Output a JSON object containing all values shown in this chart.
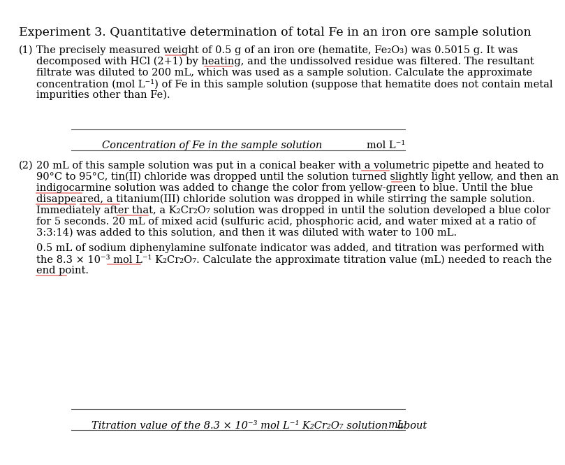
{
  "title": "Experiment 3. Quantitative determination of total Fe in an iron ore sample solution",
  "title_fontsize": 12.5,
  "body_fontsize": 10.5,
  "bg_color": "#ffffff",
  "text_color": "#000000",
  "underline_color": "#e88080",
  "answer_line1_text": "Concentration of Fe in the sample solution",
  "answer_line1_right": "mol L⁻¹",
  "answer_line2_text": "Titration value of the 8.3 × 10⁻³ mol L⁻¹ K₂Cr₂O₇ solution   about",
  "answer_line2_right": "mL",
  "s1_lines": [
    "The precisely measured weight of 0.5 g of an iron ore (hematite, Fe₂O₃) was 0.5015 g. It was",
    "decomposed with HCl (2+1) by heating, and the undissolved residue was filtered. The resultant",
    "filtrate was diluted to 200 mL, which was used as a sample solution. Calculate the approximate",
    "concentration (mol L⁻¹) of Fe in this sample solution (suppose that hematite does not contain metal",
    "impurities other than Fe)."
  ],
  "s2_lines_a": [
    "20 mL of this sample solution was put in a conical beaker with a volumetric pipette and heated to",
    "90°C to 95°C, tin(II) chloride was dropped until the solution turned slightly light yellow, and then an",
    "indigocarmine solution was added to change the color from yellow-green to blue. Until the blue",
    "disappeared, a titanium(III) chloride solution was dropped in while stirring the sample solution.",
    "Immediately after that, a K₂Cr₂O₇ solution was dropped in until the solution developed a blue color",
    "for 5 seconds. 20 mL of mixed acid (sulfuric acid, phosphoric acid, and water mixed at a ratio of",
    "3:3:14) was added to this solution, and then it was diluted with water to 100 mL."
  ],
  "s2_lines_b": [
    "0.5 mL of sodium diphenylamine sulfonate indicator was added, and titration was performed with",
    "the 8.3 × 10⁻³ mol L⁻¹ K₂Cr₂O₇. Calculate the approximate titration value (mL) needed to reach the",
    "end point."
  ]
}
